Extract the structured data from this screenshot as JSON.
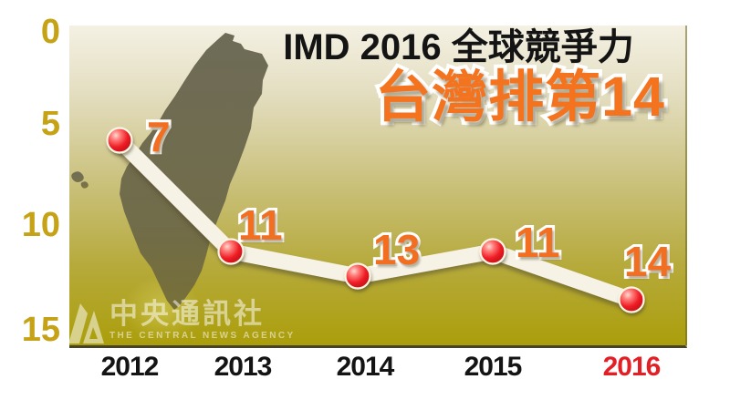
{
  "header": {
    "title": "IMD 2016 全球競爭力",
    "subtitle": "台灣排第14"
  },
  "watermark": {
    "name_zh": "中央通訊社",
    "name_en": "THE CENTRAL NEWS AGENCY"
  },
  "chart_data": {
    "type": "line",
    "title": "IMD 2016 全球競爭力",
    "subtitle": "台灣排第14",
    "categories": [
      "2012",
      "2013",
      "2014",
      "2015",
      "2016"
    ],
    "values": [
      7,
      11,
      13,
      11,
      14
    ],
    "y_ticks": [
      0,
      5,
      10,
      15
    ],
    "ylim": [
      0,
      15
    ],
    "y_axis_inverted_rank": true,
    "grid": false,
    "legend": "none",
    "highlight_category": "2016"
  },
  "colors": {
    "background_top": "#f4f1e4",
    "background_bottom": "#ab9e0b",
    "line": "#f6f2e6",
    "dot": "#ee1c25",
    "data_label": "#f26f21",
    "y_tick": "#c6a216",
    "x_label": "#141414",
    "x_label_highlight": "#e31e25",
    "title_text": "#141414",
    "subtitle_text": "#f4731f",
    "island": "#6a6648"
  }
}
